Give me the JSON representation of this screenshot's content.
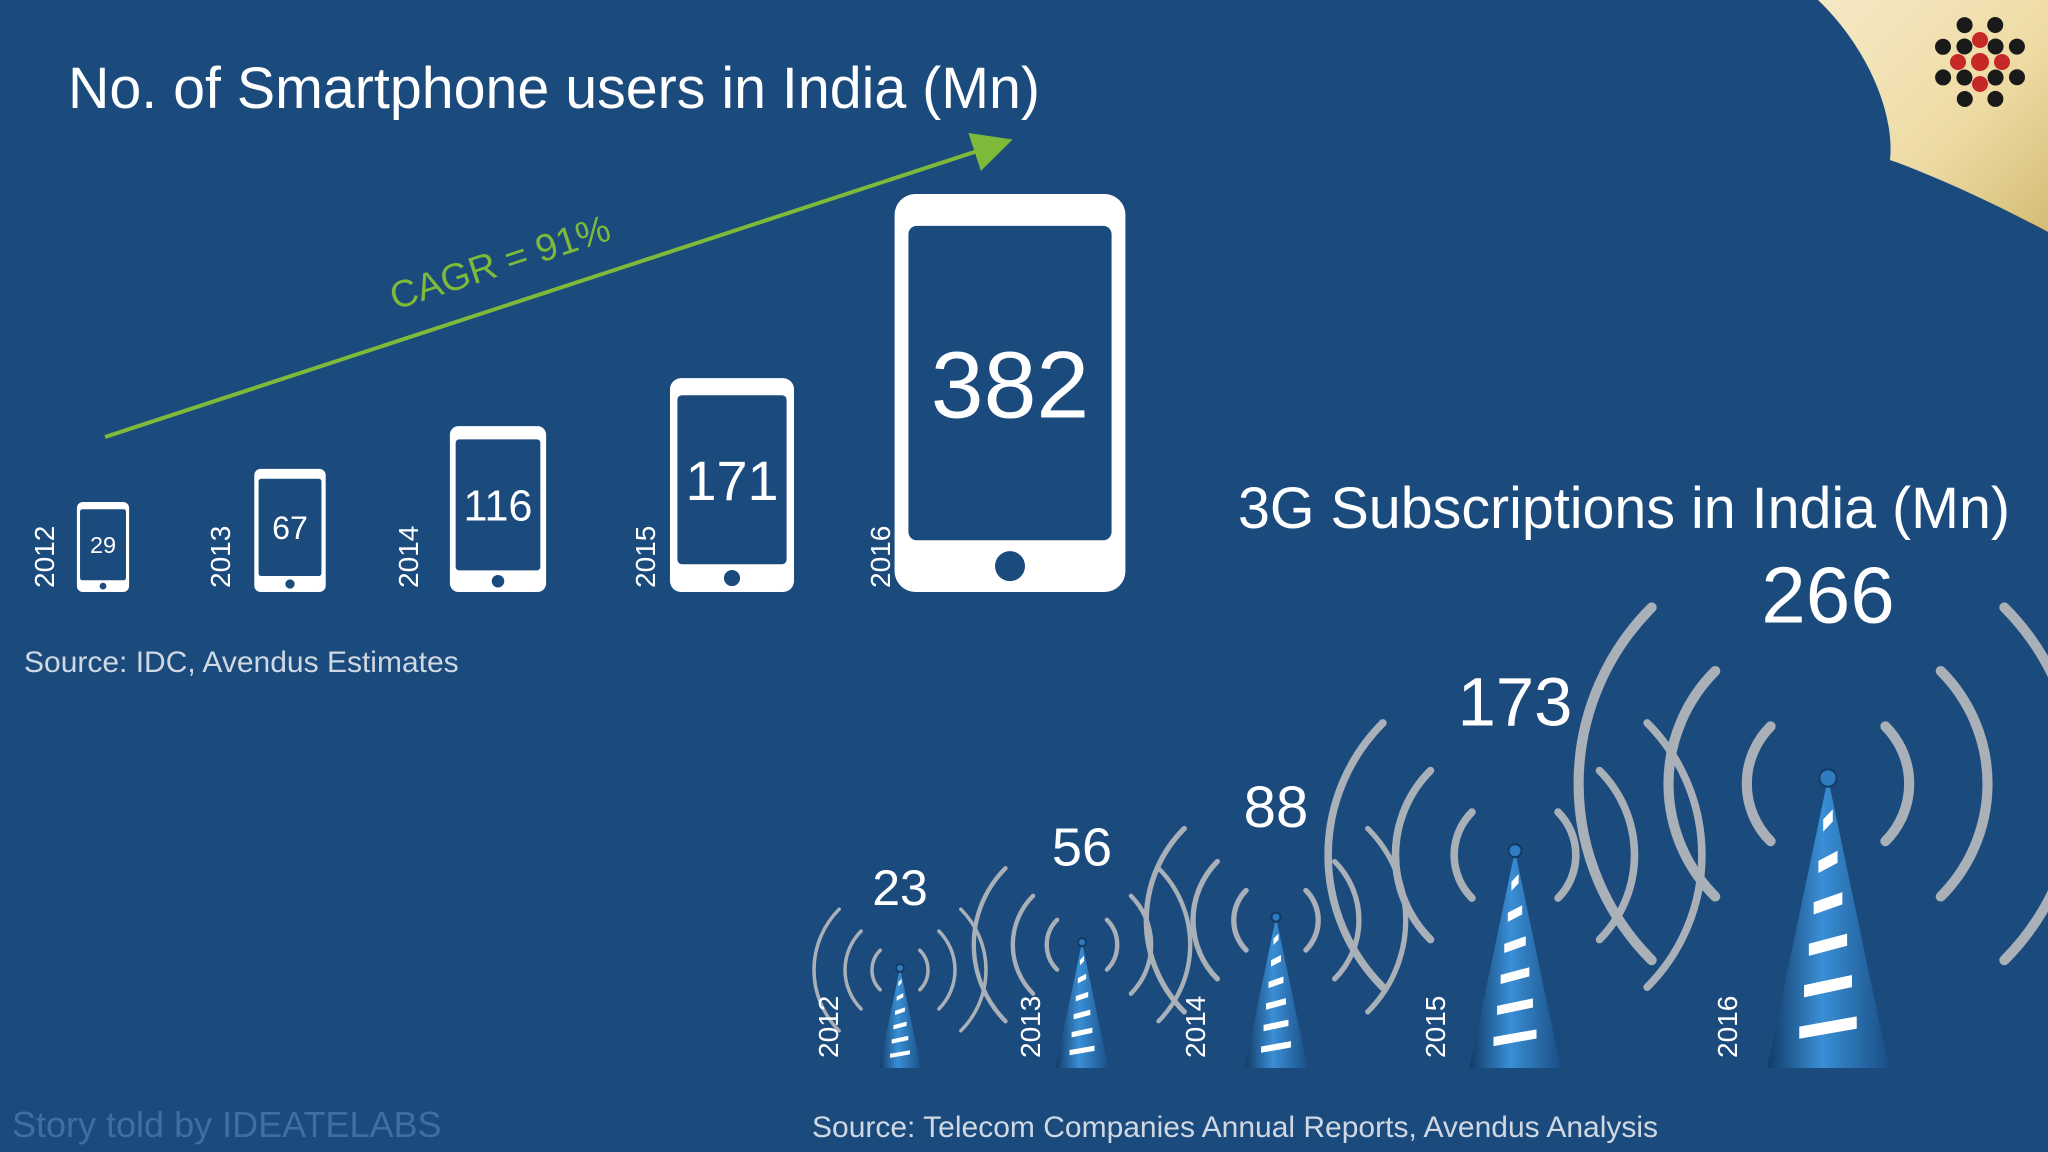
{
  "smartphone": {
    "title": "No. of Smartphone users in India (Mn)",
    "cagr_label": "CAGR = 91%",
    "source": "Source: IDC, Avendus Estimates"
  },
  "threeg": {
    "title": "3G Subscriptions in India (Mn)",
    "source": "Source: Telecom Companies Annual Reports, Avendus Analysis"
  },
  "footer": {
    "credit": "Story told by IDEATELABS"
  },
  "logo": {
    "icon": "dot-cluster-logo-icon"
  },
  "colors": {
    "background": "#1b4a7d",
    "text": "#ffffff",
    "arrow": "#7dba3a",
    "source_text": "#cfd8e3",
    "credit_text": "#3f6ea3",
    "wave": "#a9b0b8",
    "tower": "#2f7cc1",
    "curl": "#f5ecc8"
  },
  "chart_data": [
    {
      "type": "bar",
      "title": "No. of Smartphone users in India (Mn)",
      "categories": [
        "2012",
        "2013",
        "2014",
        "2015",
        "2016"
      ],
      "values": [
        29,
        67,
        116,
        171,
        382
      ],
      "annotation": "CAGR = 91%"
    },
    {
      "type": "bar",
      "title": "3G Subscriptions in India (Mn)",
      "categories": [
        "2012",
        "2013",
        "2014",
        "2015",
        "2016"
      ],
      "values": [
        23,
        56,
        88,
        173,
        266
      ]
    }
  ]
}
